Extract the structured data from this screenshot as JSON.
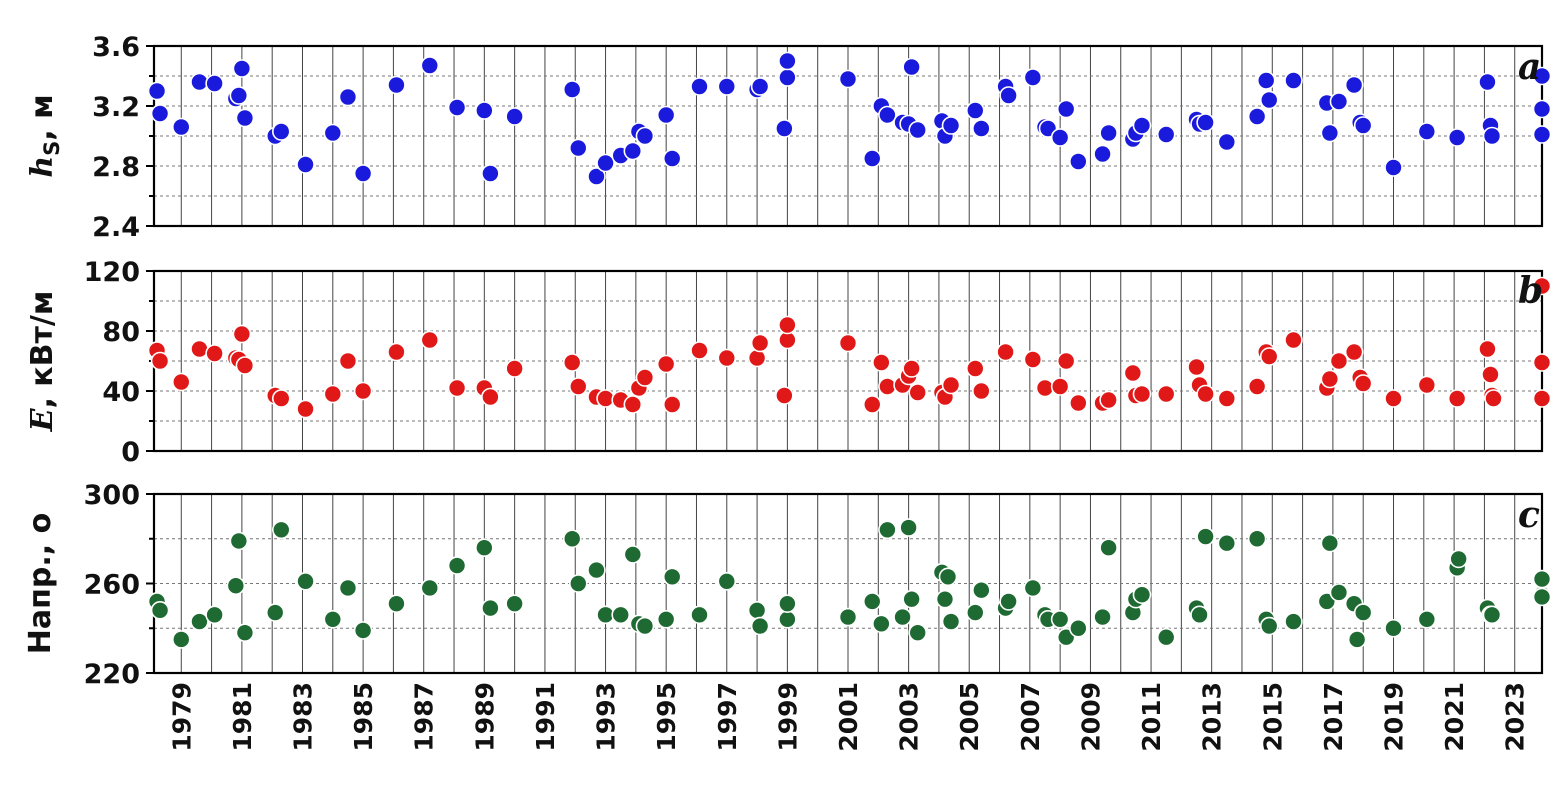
{
  "chart_data": [
    {
      "type": "scatter",
      "panel_letter": "a",
      "ylabel": "h",
      "ylabel_sub": "S",
      "ylabel_unit": ", м",
      "ylim": [
        2.4,
        3.6
      ],
      "yticks": [
        2.4,
        2.8,
        3.2,
        3.6
      ],
      "ytick_labels": [
        "2.4",
        "2.8",
        "3.2",
        "3.6"
      ],
      "xlim": [
        1978.1,
        2023.9
      ],
      "color": "#1a1adc",
      "points": [
        [
          1978.2,
          3.3
        ],
        [
          1978.3,
          3.15
        ],
        [
          1979.0,
          3.06
        ],
        [
          1979.6,
          3.36
        ],
        [
          1980.1,
          3.35
        ],
        [
          1980.8,
          3.25
        ],
        [
          1980.9,
          3.27
        ],
        [
          1981.0,
          3.45
        ],
        [
          1981.1,
          3.12
        ],
        [
          1982.1,
          3.0
        ],
        [
          1982.3,
          3.03
        ],
        [
          1983.1,
          2.81
        ],
        [
          1984.0,
          3.02
        ],
        [
          1984.5,
          3.26
        ],
        [
          1985.0,
          2.75
        ],
        [
          1986.1,
          3.34
        ],
        [
          1987.2,
          3.47
        ],
        [
          1988.1,
          3.19
        ],
        [
          1989.0,
          3.17
        ],
        [
          1989.2,
          2.75
        ],
        [
          1990.0,
          3.13
        ],
        [
          1991.9,
          3.31
        ],
        [
          1992.1,
          2.92
        ],
        [
          1992.7,
          2.73
        ],
        [
          1993.0,
          2.82
        ],
        [
          1993.5,
          2.87
        ],
        [
          1993.9,
          2.9
        ],
        [
          1994.1,
          3.03
        ],
        [
          1994.3,
          3.0
        ],
        [
          1995.0,
          3.14
        ],
        [
          1995.2,
          2.85
        ],
        [
          1996.1,
          3.33
        ],
        [
          1997.0,
          3.33
        ],
        [
          1998.0,
          3.31
        ],
        [
          1998.1,
          3.33
        ],
        [
          1999.0,
          3.39
        ],
        [
          1999.0,
          3.5
        ],
        [
          1998.9,
          3.05
        ],
        [
          2001.0,
          3.38
        ],
        [
          2001.8,
          2.85
        ],
        [
          2002.1,
          3.2
        ],
        [
          2002.3,
          3.14
        ],
        [
          2002.8,
          3.09
        ],
        [
          2003.0,
          3.08
        ],
        [
          2003.1,
          3.46
        ],
        [
          2003.3,
          3.04
        ],
        [
          2004.1,
          3.1
        ],
        [
          2004.2,
          3.0
        ],
        [
          2004.4,
          3.07
        ],
        [
          2005.2,
          3.17
        ],
        [
          2005.4,
          3.05
        ],
        [
          2006.2,
          3.33
        ],
        [
          2006.3,
          3.27
        ],
        [
          2007.1,
          3.39
        ],
        [
          2007.5,
          3.06
        ],
        [
          2007.6,
          3.05
        ],
        [
          2008.0,
          2.99
        ],
        [
          2008.2,
          3.18
        ],
        [
          2008.6,
          2.83
        ],
        [
          2009.4,
          2.88
        ],
        [
          2009.6,
          3.02
        ],
        [
          2010.4,
          2.98
        ],
        [
          2010.5,
          3.02
        ],
        [
          2010.7,
          3.07
        ],
        [
          2011.5,
          3.01
        ],
        [
          2012.5,
          3.11
        ],
        [
          2012.6,
          3.08
        ],
        [
          2012.8,
          3.09
        ],
        [
          2013.5,
          2.96
        ],
        [
          2014.5,
          3.13
        ],
        [
          2014.8,
          3.37
        ],
        [
          2014.9,
          3.24
        ],
        [
          2015.7,
          3.37
        ],
        [
          2016.8,
          3.22
        ],
        [
          2016.9,
          3.02
        ],
        [
          2017.2,
          3.23
        ],
        [
          2017.7,
          3.34
        ],
        [
          2017.9,
          3.09
        ],
        [
          2018.0,
          3.07
        ],
        [
          2019.0,
          2.79
        ],
        [
          2020.1,
          3.03
        ],
        [
          2021.1,
          2.99
        ],
        [
          2022.1,
          3.36
        ],
        [
          2022.2,
          3.07
        ],
        [
          2022.25,
          3.0
        ],
        [
          2023.9,
          3.4
        ],
        [
          2023.9,
          3.18
        ],
        [
          2023.9,
          3.01
        ]
      ]
    },
    {
      "type": "scatter",
      "panel_letter": "b",
      "ylabel": "E",
      "ylabel_unit": ", кВт/м",
      "ylim": [
        0,
        120
      ],
      "yticks": [
        0,
        40,
        80,
        120
      ],
      "ytick_labels": [
        "0",
        "40",
        "80",
        "120"
      ],
      "xlim": [
        1978.1,
        2023.9
      ],
      "color": "#e01818",
      "points": [
        [
          1978.2,
          67
        ],
        [
          1978.3,
          60
        ],
        [
          1979.0,
          46
        ],
        [
          1979.6,
          68
        ],
        [
          1980.1,
          65
        ],
        [
          1980.8,
          62
        ],
        [
          1980.9,
          61
        ],
        [
          1981.0,
          78
        ],
        [
          1981.1,
          57
        ],
        [
          1982.1,
          37
        ],
        [
          1982.3,
          35
        ],
        [
          1983.1,
          28
        ],
        [
          1984.0,
          38
        ],
        [
          1984.5,
          60
        ],
        [
          1985.0,
          40
        ],
        [
          1986.1,
          66
        ],
        [
          1987.2,
          74
        ],
        [
          1988.1,
          42
        ],
        [
          1989.0,
          42
        ],
        [
          1989.2,
          36
        ],
        [
          1990.0,
          55
        ],
        [
          1991.9,
          59
        ],
        [
          1992.1,
          43
        ],
        [
          1992.7,
          36
        ],
        [
          1993.0,
          35
        ],
        [
          1993.5,
          34
        ],
        [
          1993.9,
          31
        ],
        [
          1994.1,
          42
        ],
        [
          1994.3,
          49
        ],
        [
          1995.0,
          58
        ],
        [
          1995.2,
          31
        ],
        [
          1996.1,
          67
        ],
        [
          1997.0,
          62
        ],
        [
          1998.0,
          62
        ],
        [
          1998.1,
          72
        ],
        [
          1999.0,
          74
        ],
        [
          1999.0,
          84
        ],
        [
          1998.9,
          37
        ],
        [
          2001.0,
          72
        ],
        [
          2001.8,
          31
        ],
        [
          2002.1,
          59
        ],
        [
          2002.3,
          43
        ],
        [
          2002.8,
          44
        ],
        [
          2003.0,
          50
        ],
        [
          2003.1,
          55
        ],
        [
          2003.3,
          39
        ],
        [
          2004.1,
          39
        ],
        [
          2004.2,
          36
        ],
        [
          2004.4,
          44
        ],
        [
          2005.2,
          55
        ],
        [
          2005.4,
          40
        ],
        [
          2006.2,
          66
        ],
        [
          2007.1,
          61
        ],
        [
          2007.5,
          42
        ],
        [
          2008.0,
          43
        ],
        [
          2008.2,
          60
        ],
        [
          2008.6,
          32
        ],
        [
          2009.4,
          32
        ],
        [
          2009.6,
          34
        ],
        [
          2010.4,
          52
        ],
        [
          2010.5,
          37
        ],
        [
          2010.7,
          38
        ],
        [
          2011.5,
          38
        ],
        [
          2012.5,
          56
        ],
        [
          2012.6,
          44
        ],
        [
          2012.8,
          38
        ],
        [
          2013.5,
          35
        ],
        [
          2014.5,
          43
        ],
        [
          2014.8,
          66
        ],
        [
          2014.9,
          63
        ],
        [
          2015.7,
          74
        ],
        [
          2016.8,
          42
        ],
        [
          2016.9,
          48
        ],
        [
          2017.2,
          60
        ],
        [
          2017.7,
          66
        ],
        [
          2017.9,
          49
        ],
        [
          2018.0,
          45
        ],
        [
          2019.0,
          35
        ],
        [
          2020.1,
          44
        ],
        [
          2021.1,
          35
        ],
        [
          2022.1,
          68
        ],
        [
          2022.2,
          51
        ],
        [
          2022.25,
          37
        ],
        [
          2022.3,
          35
        ],
        [
          2023.9,
          110
        ],
        [
          2023.9,
          59
        ],
        [
          2023.9,
          35
        ]
      ]
    },
    {
      "type": "scatter",
      "panel_letter": "c",
      "ylabel": "Напр., о",
      "ylim": [
        220,
        300
      ],
      "yticks": [
        220,
        260,
        300
      ],
      "ytick_labels": [
        "220",
        "260",
        "300"
      ],
      "xlim": [
        1978.1,
        2023.9
      ],
      "color": "#1e6a32",
      "points": [
        [
          1978.2,
          252
        ],
        [
          1978.3,
          248
        ],
        [
          1979.0,
          235
        ],
        [
          1979.6,
          243
        ],
        [
          1980.1,
          246
        ],
        [
          1980.8,
          259
        ],
        [
          1980.9,
          279
        ],
        [
          1981.1,
          238
        ],
        [
          1982.1,
          247
        ],
        [
          1982.3,
          284
        ],
        [
          1983.1,
          261
        ],
        [
          1984.0,
          244
        ],
        [
          1984.5,
          258
        ],
        [
          1985.0,
          239
        ],
        [
          1986.1,
          251
        ],
        [
          1987.2,
          258
        ],
        [
          1988.1,
          268
        ],
        [
          1989.0,
          276
        ],
        [
          1989.2,
          249
        ],
        [
          1990.0,
          251
        ],
        [
          1991.9,
          280
        ],
        [
          1992.1,
          260
        ],
        [
          1992.7,
          266
        ],
        [
          1993.0,
          246
        ],
        [
          1993.5,
          246
        ],
        [
          1993.9,
          273
        ],
        [
          1994.1,
          242
        ],
        [
          1994.3,
          241
        ],
        [
          1995.0,
          244
        ],
        [
          1995.2,
          263
        ],
        [
          1996.1,
          246
        ],
        [
          1997.0,
          261
        ],
        [
          1998.0,
          248
        ],
        [
          1998.1,
          241
        ],
        [
          1999.0,
          244
        ],
        [
          1999.0,
          251
        ],
        [
          2001.0,
          245
        ],
        [
          2001.8,
          252
        ],
        [
          2002.1,
          242
        ],
        [
          2002.3,
          284
        ],
        [
          2002.8,
          245
        ],
        [
          2003.0,
          285
        ],
        [
          2003.1,
          253
        ],
        [
          2003.3,
          238
        ],
        [
          2004.1,
          265
        ],
        [
          2004.2,
          253
        ],
        [
          2004.4,
          243
        ],
        [
          2004.3,
          263
        ],
        [
          2005.2,
          247
        ],
        [
          2005.4,
          257
        ],
        [
          2006.2,
          249
        ],
        [
          2006.3,
          252
        ],
        [
          2007.1,
          258
        ],
        [
          2007.5,
          246
        ],
        [
          2007.6,
          244
        ],
        [
          2008.0,
          244
        ],
        [
          2008.2,
          236
        ],
        [
          2008.6,
          240
        ],
        [
          2009.4,
          245
        ],
        [
          2009.6,
          276
        ],
        [
          2010.4,
          247
        ],
        [
          2010.5,
          253
        ],
        [
          2010.7,
          255
        ],
        [
          2011.5,
          236
        ],
        [
          2012.5,
          249
        ],
        [
          2012.6,
          246
        ],
        [
          2012.8,
          281
        ],
        [
          2013.5,
          278
        ],
        [
          2014.5,
          280
        ],
        [
          2014.8,
          244
        ],
        [
          2014.9,
          241
        ],
        [
          2015.7,
          243
        ],
        [
          2016.8,
          252
        ],
        [
          2016.9,
          278
        ],
        [
          2017.2,
          256
        ],
        [
          2017.7,
          251
        ],
        [
          2017.8,
          235
        ],
        [
          2018.0,
          247
        ],
        [
          2019.0,
          240
        ],
        [
          2020.1,
          244
        ],
        [
          2021.1,
          267
        ],
        [
          2021.15,
          271
        ],
        [
          2022.1,
          249
        ],
        [
          2022.2,
          246
        ],
        [
          2022.25,
          246
        ],
        [
          2023.9,
          255
        ],
        [
          2023.9,
          262
        ],
        [
          2023.9,
          254
        ]
      ]
    }
  ],
  "x_tick_labels": [
    "1979",
    "1981",
    "1983",
    "1985",
    "1987",
    "1989",
    "1991",
    "1993",
    "1995",
    "1997",
    "1999",
    "2001",
    "2003",
    "2005",
    "2007",
    "2009",
    "2011",
    "2013",
    "2015",
    "2017",
    "2019",
    "2021",
    "2023"
  ]
}
